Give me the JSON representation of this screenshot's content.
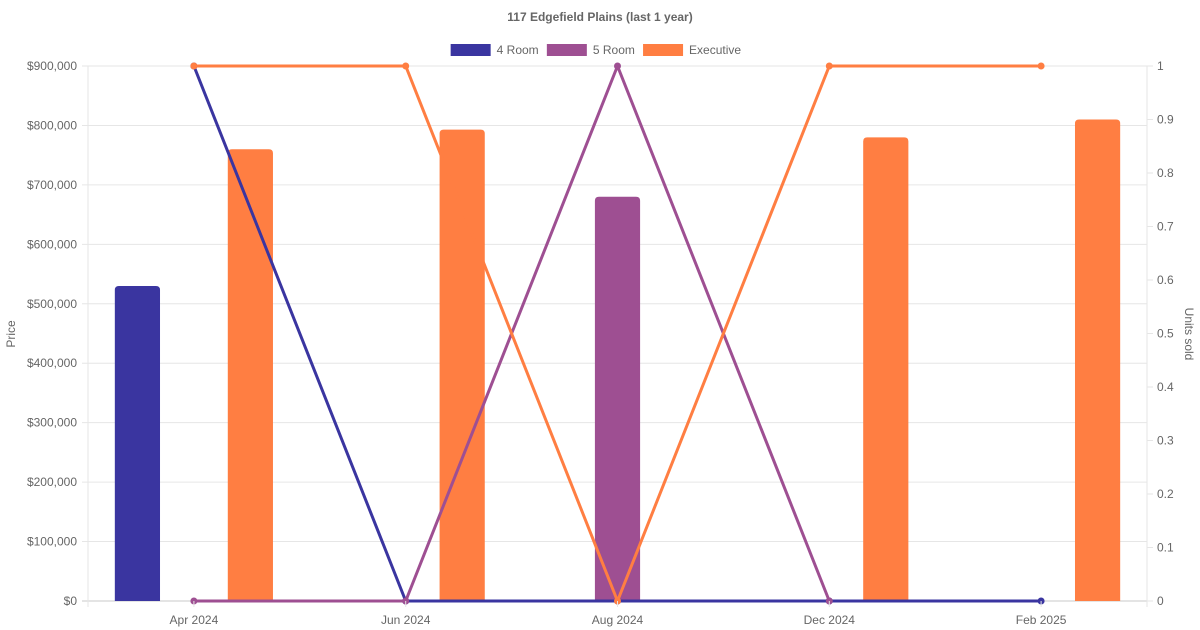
{
  "chart_data": {
    "type": "bar",
    "title": "117 Edgefield  Plains (last 1 year)",
    "categories": [
      "Apr 2024",
      "Jun 2024",
      "Aug 2024",
      "Dec 2024",
      "Feb 2025"
    ],
    "y_left": {
      "label": "Price",
      "range": [
        0,
        900000
      ],
      "ticks": [
        "$0",
        "$100,000",
        "$200,000",
        "$300,000",
        "$400,000",
        "$500,000",
        "$600,000",
        "$700,000",
        "$800,000",
        "$900,000"
      ]
    },
    "y_right": {
      "label": "Units sold",
      "range": [
        0,
        1
      ],
      "ticks": [
        "0",
        "0.1",
        "0.2",
        "0.3",
        "0.4",
        "0.5",
        "0.6",
        "0.7",
        "0.8",
        "0.9",
        "1"
      ]
    },
    "grid": true,
    "legend_position": "top-center",
    "series": [
      {
        "name": "4 Room",
        "color": "#3a35a0",
        "price": [
          530000,
          null,
          null,
          null,
          null
        ],
        "units": [
          1,
          0,
          0,
          0,
          0
        ]
      },
      {
        "name": "5 Room",
        "color": "#9e4f92",
        "price": [
          null,
          null,
          680000,
          null,
          null
        ],
        "units": [
          0,
          0,
          1,
          0,
          null
        ]
      },
      {
        "name": "Executive",
        "color": "#ff7e42",
        "price": [
          760000,
          793000,
          null,
          780000,
          810000
        ],
        "units": [
          1,
          1,
          0,
          1,
          1
        ]
      }
    ]
  }
}
